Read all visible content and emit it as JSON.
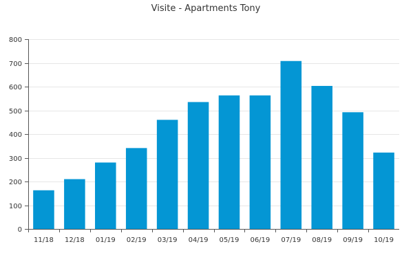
{
  "chart_data": {
    "type": "bar",
    "title": "Visite - Apartments Tony",
    "categories": [
      "11/18",
      "12/18",
      "01/19",
      "02/19",
      "03/19",
      "04/19",
      "05/19",
      "06/19",
      "07/19",
      "08/19",
      "09/19",
      "10/19"
    ],
    "values": [
      163,
      210,
      280,
      341,
      460,
      535,
      563,
      563,
      708,
      603,
      492,
      322
    ],
    "ylim": [
      0,
      800
    ],
    "yticks": [
      0,
      100,
      200,
      300,
      400,
      500,
      600,
      700,
      800
    ],
    "grid": true,
    "legend": false,
    "colors": {
      "bar": "#0496d4"
    }
  }
}
